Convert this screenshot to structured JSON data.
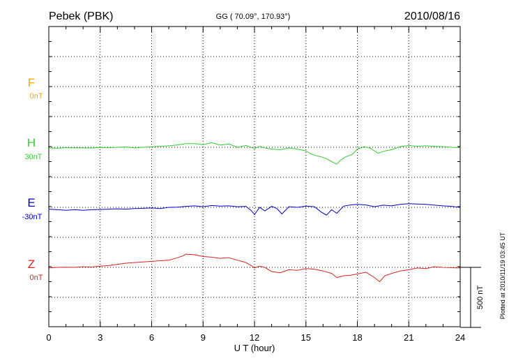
{
  "header": {
    "station": "Pebek (PBK)",
    "coords": "GG ( 70.09°, 170.93°)",
    "date": "2010/08/16"
  },
  "footer": {
    "plotted": "Plotted at 2010/11/19 03:45 UT"
  },
  "chart_data": {
    "type": "line",
    "xlabel": "U T (hour)",
    "xlim": [
      0,
      24
    ],
    "xticks": [
      "0",
      "3",
      "6",
      "9",
      "12",
      "15",
      "18",
      "21",
      "24"
    ],
    "scale_bar": {
      "label": "500 nT",
      "value_nT": 500
    },
    "grid": true,
    "series": [
      {
        "name": "F",
        "baseline_label": "0nT",
        "color": "#ffa500",
        "x": [],
        "values": []
      },
      {
        "name": "H",
        "baseline_label": "30nT",
        "color": "#33cc33",
        "x": [
          0,
          0.5,
          1,
          1.5,
          2,
          2.5,
          3,
          3.5,
          4,
          4.5,
          5,
          5.5,
          6,
          6.5,
          7,
          7.5,
          8,
          8.5,
          9,
          9.5,
          10,
          10.5,
          11,
          11.5,
          12,
          12.3,
          12.6,
          13,
          13.5,
          13.8,
          14,
          14.5,
          15,
          15.3,
          15.6,
          15.9,
          16.2,
          16.5,
          16.8,
          17,
          17.3,
          17.7,
          18,
          18.4,
          18.8,
          19.2,
          19.6,
          20,
          20.5,
          21,
          21.5,
          22,
          22.5,
          23,
          23.5,
          24
        ],
        "values": [
          -5,
          -8,
          -3,
          -5,
          -4,
          -6,
          -2,
          -4,
          0,
          3,
          -5,
          0,
          4,
          8,
          12,
          20,
          30,
          30,
          22,
          38,
          18,
          28,
          0,
          15,
          -10,
          8,
          -5,
          -15,
          -20,
          -12,
          -5,
          -15,
          -30,
          -55,
          -70,
          -80,
          -95,
          -120,
          -140,
          -110,
          -80,
          -60,
          -15,
          5,
          -10,
          -50,
          -30,
          -20,
          5,
          15,
          8,
          12,
          8,
          5,
          0,
          -3
        ]
      },
      {
        "name": "E",
        "baseline_label": "-30nT",
        "color": "#0000cc",
        "x": [
          0,
          0.5,
          1,
          1.5,
          2,
          2.5,
          3,
          3.5,
          4,
          4.5,
          5,
          5.5,
          6,
          6.5,
          7,
          7.5,
          8,
          8.5,
          9,
          9.5,
          10,
          10.5,
          11,
          11.5,
          11.8,
          12,
          12.3,
          12.6,
          13,
          13.3,
          13.6,
          14,
          14.5,
          15,
          15.5,
          15.9,
          16.2,
          16.5,
          16.8,
          17.2,
          17.6,
          18,
          18.5,
          19,
          19.5,
          20,
          20.5,
          21,
          21.5,
          22,
          22.5,
          23,
          23.5,
          24
        ],
        "values": [
          -15,
          -20,
          -25,
          -20,
          -25,
          -20,
          -18,
          -15,
          -12,
          -15,
          -10,
          -8,
          -5,
          -10,
          0,
          2,
          8,
          12,
          5,
          15,
          10,
          12,
          5,
          8,
          -25,
          -60,
          0,
          -30,
          8,
          -10,
          -55,
          5,
          0,
          10,
          5,
          -40,
          -65,
          -20,
          -50,
          10,
          20,
          25,
          20,
          5,
          18,
          12,
          25,
          30,
          28,
          25,
          18,
          12,
          8,
          0
        ]
      },
      {
        "name": "Z",
        "baseline_label": "0nT",
        "color": "#dd2222",
        "x": [
          0,
          0.5,
          1,
          1.5,
          2,
          2.5,
          3,
          3.5,
          4,
          4.5,
          5,
          5.5,
          6,
          6.5,
          7,
          7.5,
          7.8,
          8,
          8.5,
          9,
          9.5,
          10,
          10.5,
          11,
          11.5,
          11.8,
          12,
          12.3,
          12.6,
          13,
          13.5,
          14,
          14.5,
          15,
          15.5,
          16,
          16.5,
          16.8,
          17.2,
          17.6,
          18,
          18.5,
          19,
          19.3,
          19.6,
          20,
          20.5,
          21,
          21.5,
          22,
          22.5,
          23,
          23.5,
          24
        ],
        "values": [
          -5,
          0,
          2,
          0,
          5,
          3,
          10,
          15,
          25,
          35,
          40,
          45,
          50,
          55,
          60,
          80,
          95,
          110,
          105,
          90,
          85,
          75,
          80,
          60,
          40,
          15,
          -5,
          10,
          0,
          -35,
          -45,
          -20,
          -25,
          -10,
          -15,
          -30,
          -50,
          -85,
          -70,
          -65,
          -55,
          -40,
          -85,
          -120,
          -70,
          -50,
          -30,
          -20,
          -5,
          -10,
          5,
          0,
          -3,
          -5
        ]
      }
    ]
  }
}
